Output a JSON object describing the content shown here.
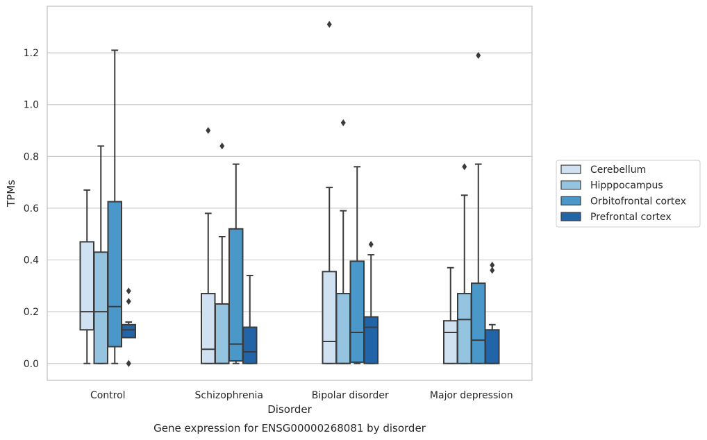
{
  "chart_data": {
    "type": "box",
    "title": "Gene expression for ENSG00000268081 by disorder",
    "xlabel": "Disorder",
    "ylabel": "TPMs",
    "ylim": [
      -0.065,
      1.38
    ],
    "yticks": [
      "0.0",
      "0.2",
      "0.4",
      "0.6",
      "0.8",
      "1.0",
      "1.2"
    ],
    "grid": "horizontal",
    "legend_placement": "right",
    "categories": [
      "Control",
      "Schizophrenia",
      "Bipolar disorder",
      "Major depression"
    ],
    "series": [
      {
        "name": "Cerebellum",
        "color": "#d0e1f2",
        "boxes": [
          {
            "min": 0.0,
            "q1": 0.13,
            "median": 0.2,
            "q3": 0.47,
            "max": 0.67,
            "outliers": []
          },
          {
            "min": 0.0,
            "q1": 0.0,
            "median": 0.055,
            "q3": 0.27,
            "max": 0.58,
            "outliers": [
              0.9
            ]
          },
          {
            "min": 0.0,
            "q1": 0.0,
            "median": 0.085,
            "q3": 0.355,
            "max": 0.68,
            "outliers": [
              1.31
            ]
          },
          {
            "min": 0.0,
            "q1": 0.0,
            "median": 0.12,
            "q3": 0.165,
            "max": 0.37,
            "outliers": []
          }
        ]
      },
      {
        "name": "Hipppocampus",
        "color": "#94c4df",
        "boxes": [
          {
            "min": 0.0,
            "q1": 0.0,
            "median": 0.2,
            "q3": 0.43,
            "max": 0.84,
            "outliers": []
          },
          {
            "min": 0.0,
            "q1": 0.0,
            "median": 0.0,
            "q3": 0.23,
            "max": 0.49,
            "outliers": [
              0.84
            ]
          },
          {
            "min": 0.0,
            "q1": 0.0,
            "median": 0.0,
            "q3": 0.27,
            "max": 0.59,
            "outliers": [
              0.93
            ]
          },
          {
            "min": 0.0,
            "q1": 0.0,
            "median": 0.17,
            "q3": 0.27,
            "max": 0.65,
            "outliers": [
              0.76
            ]
          }
        ]
      },
      {
        "name": "Orbitofrontal cortex",
        "color": "#4a98c9",
        "boxes": [
          {
            "min": 0.0,
            "q1": 0.065,
            "median": 0.22,
            "q3": 0.625,
            "max": 1.21,
            "outliers": []
          },
          {
            "min": 0.0,
            "q1": 0.01,
            "median": 0.075,
            "q3": 0.52,
            "max": 0.77,
            "outliers": []
          },
          {
            "min": 0.0,
            "q1": 0.005,
            "median": 0.12,
            "q3": 0.395,
            "max": 0.76,
            "outliers": []
          },
          {
            "min": 0.0,
            "q1": 0.0,
            "median": 0.09,
            "q3": 0.31,
            "max": 0.77,
            "outliers": [
              1.19
            ]
          }
        ]
      },
      {
        "name": "Prefrontal cortex",
        "color": "#2264a8",
        "boxes": [
          {
            "min": 0.1,
            "q1": 0.1,
            "median": 0.13,
            "q3": 0.15,
            "max": 0.16,
            "outliers": [
              0.0,
              0.0,
              0.24,
              0.28
            ]
          },
          {
            "min": 0.0,
            "q1": 0.0,
            "median": 0.045,
            "q3": 0.14,
            "max": 0.34,
            "outliers": []
          },
          {
            "min": 0.0,
            "q1": 0.0,
            "median": 0.14,
            "q3": 0.18,
            "max": 0.42,
            "outliers": [
              0.46
            ]
          },
          {
            "min": 0.0,
            "q1": 0.0,
            "median": 0.0,
            "q3": 0.13,
            "max": 0.15,
            "outliers": [
              0.36,
              0.38
            ]
          }
        ]
      }
    ]
  }
}
